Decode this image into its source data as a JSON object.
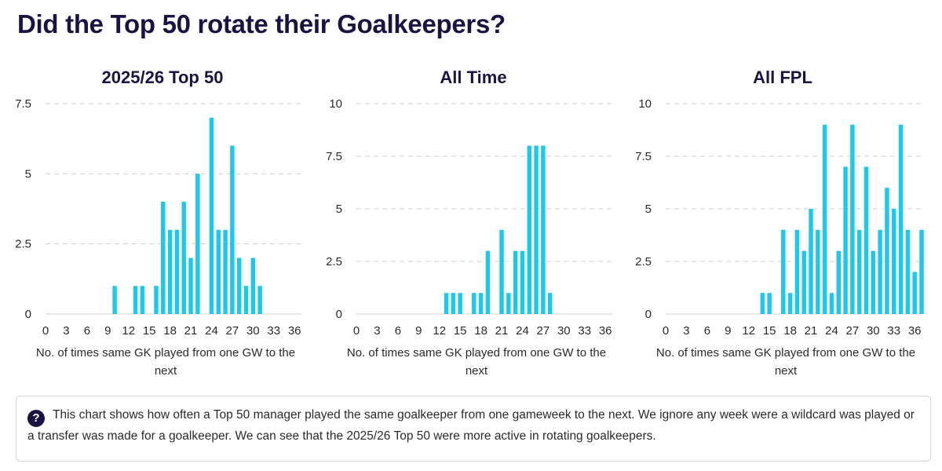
{
  "page": {
    "title": "Did the Top 50 rotate their Goalkeepers?",
    "note": "This chart shows how often a Top 50 manager played the same goalkeeper from one gameweek to the next. We ignore any week were a wildcard was played or a transfer was made for a goalkeeper. We can see that the 2025/26 Top 50 were more active in rotating goalkeepers.",
    "note_icon": "question-circle-icon"
  },
  "colors": {
    "bar": "#1ec8ea",
    "title": "#1b1340"
  },
  "chart_data": [
    {
      "type": "bar",
      "title": "2025/26 Top 50",
      "xlabel": "No. of times same GK played from one GW to the next",
      "ylabel": "",
      "x": [
        10,
        13,
        14,
        16,
        17,
        18,
        19,
        20,
        21,
        22,
        24,
        25,
        26,
        27,
        28,
        29,
        30,
        31
      ],
      "values": [
        1,
        1,
        1,
        1,
        4,
        3,
        3,
        4,
        2,
        5,
        7,
        3,
        3,
        6,
        2,
        1,
        2,
        1
      ],
      "xlim": [
        0,
        37
      ],
      "ylim": [
        0,
        7.5
      ],
      "xticks": [
        0,
        3,
        6,
        9,
        12,
        15,
        18,
        21,
        24,
        27,
        30,
        33,
        36
      ],
      "yticks": [
        0,
        2.5,
        5,
        7.5
      ],
      "ytick_labels": [
        "0",
        "2.5",
        "5",
        "7.5"
      ],
      "grid": true
    },
    {
      "type": "bar",
      "title": "All Time",
      "xlabel": "No. of times same GK played from one GW to the next",
      "ylabel": "",
      "x": [
        13,
        14,
        15,
        17,
        18,
        19,
        21,
        22,
        23,
        24,
        25,
        26,
        27,
        28
      ],
      "values": [
        1,
        1,
        1,
        1,
        1,
        3,
        4,
        1,
        3,
        3,
        8,
        8,
        8,
        1
      ],
      "xlim": [
        0,
        37
      ],
      "ylim": [
        0,
        10
      ],
      "xticks": [
        0,
        3,
        6,
        9,
        12,
        15,
        18,
        21,
        24,
        27,
        30,
        33,
        36
      ],
      "yticks": [
        0,
        2.5,
        5,
        7.5,
        10
      ],
      "ytick_labels": [
        "0",
        "2.5",
        "5",
        "7.5",
        "10"
      ],
      "grid": true
    },
    {
      "type": "bar",
      "title": "All FPL",
      "xlabel": "No. of times same GK played from one GW to the next",
      "ylabel": "",
      "x": [
        14,
        15,
        17,
        18,
        19,
        20,
        21,
        22,
        23,
        24,
        25,
        26,
        27,
        28,
        29,
        30,
        31,
        32,
        33,
        34,
        35,
        36,
        37
      ],
      "values": [
        1,
        1,
        4,
        1,
        4,
        3,
        5,
        4,
        9,
        1,
        3,
        7,
        9,
        4,
        7,
        3,
        4,
        6,
        5,
        9,
        4,
        2,
        4
      ],
      "xlim": [
        0,
        37
      ],
      "ylim": [
        0,
        10
      ],
      "xticks": [
        0,
        3,
        6,
        9,
        12,
        15,
        18,
        21,
        24,
        27,
        30,
        33,
        36
      ],
      "yticks": [
        0,
        2.5,
        5,
        7.5,
        10
      ],
      "ytick_labels": [
        "0",
        "2.5",
        "5",
        "7.5",
        "10"
      ],
      "grid": true
    }
  ]
}
